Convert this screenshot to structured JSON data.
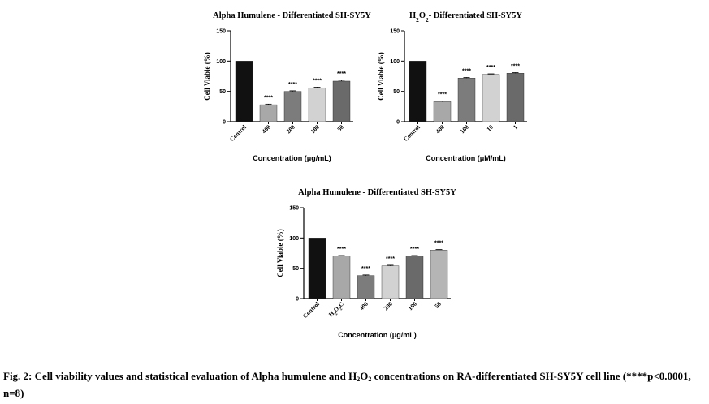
{
  "chart_data": [
    {
      "type": "bar",
      "title": "Alpha Humulene - Differentiated SH-SY5Y",
      "xlabel": "Concentration (μg/mL)",
      "ylabel": "Cell Viable (%)",
      "ylim": [
        0,
        150
      ],
      "yticks": [
        "0",
        "50",
        "100",
        "150"
      ],
      "categories": [
        "Control",
        "400",
        "200",
        "100",
        "50"
      ],
      "values": [
        100,
        28,
        50,
        56,
        67
      ],
      "errors": [
        0,
        1,
        1,
        1,
        1.5
      ],
      "significance": [
        "",
        "****",
        "****",
        "****",
        "****"
      ],
      "bar_colors": [
        "#111111",
        "#a8a8a8",
        "#7c7c7c",
        "#d2d2d2",
        "#6a6a6a"
      ]
    },
    {
      "type": "bar",
      "title_parts": [
        "H",
        "2",
        "O",
        "2",
        "- Differentiated SH-SY5Y"
      ],
      "xlabel": "Concentration (μM/mL)",
      "ylabel": "Cell Viable (%)",
      "ylim": [
        0,
        150
      ],
      "yticks": [
        "0",
        "50",
        "100",
        "150"
      ],
      "categories": [
        "Control",
        "400",
        "100",
        "10",
        "1"
      ],
      "values": [
        100,
        33,
        72,
        78,
        80
      ],
      "errors": [
        0,
        1,
        1,
        1,
        1
      ],
      "significance": [
        "",
        "****",
        "****",
        "****",
        "****"
      ],
      "bar_colors": [
        "#111111",
        "#a8a8a8",
        "#7c7c7c",
        "#d2d2d2",
        "#6a6a6a"
      ]
    },
    {
      "type": "bar",
      "title": "Alpha Humulene - Differentiated SH-SY5Y",
      "xlabel": "Concentration (μg/mL)",
      "ylabel": "Cell Viable (%)",
      "ylim": [
        0,
        150
      ],
      "yticks": [
        "0",
        "50",
        "100",
        "150"
      ],
      "categories": [
        "Control",
        "H2O2C",
        "400",
        "200",
        "100",
        "50"
      ],
      "tick_label_parts": {
        "1": [
          "H",
          "2",
          "O",
          "2",
          "C"
        ]
      },
      "values": [
        100,
        70,
        38,
        54,
        70,
        80
      ],
      "errors": [
        0,
        1,
        1,
        1,
        1,
        1
      ],
      "significance": [
        "",
        "****",
        "****",
        "****",
        "****",
        "****"
      ],
      "bar_colors": [
        "#111111",
        "#a8a8a8",
        "#7c7c7c",
        "#d2d2d2",
        "#6a6a6a",
        "#b5b5b5"
      ]
    }
  ],
  "caption": {
    "prefix": "Fig. 2: Cell viability values and statistical evaluation of Alpha humulene and H",
    "sub1": "2",
    "mid": "O",
    "sub2": "2",
    "suffix": " concentrations on RA-differentiated SH-SY5Y cell line (****p<0.0001, n=8)"
  }
}
